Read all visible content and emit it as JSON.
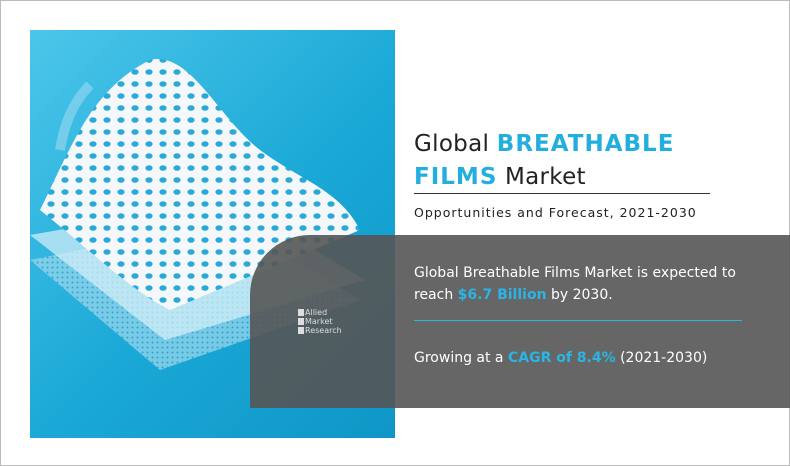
{
  "heading": {
    "prefix": "Global",
    "highlight_line1": "BREATHABLE",
    "highlight_line2": "FILMS",
    "suffix": "Market"
  },
  "subtitle": "Opportunities and Forecast, 2021-2030",
  "stat1": {
    "before": "Global Breathable Films Market is expected to reach",
    "value": "$6.7  Billion",
    "after": "by 2030."
  },
  "stat2": {
    "before": "Growing at a",
    "value": "CAGR of 8.4%",
    "after": "(2021-2030)"
  },
  "logo": {
    "line1": "Allied",
    "line2": "Market",
    "line3": "Research"
  },
  "colors": {
    "accent": "#29b6e4",
    "panel": "#1aa8d6",
    "box": "#555555"
  }
}
